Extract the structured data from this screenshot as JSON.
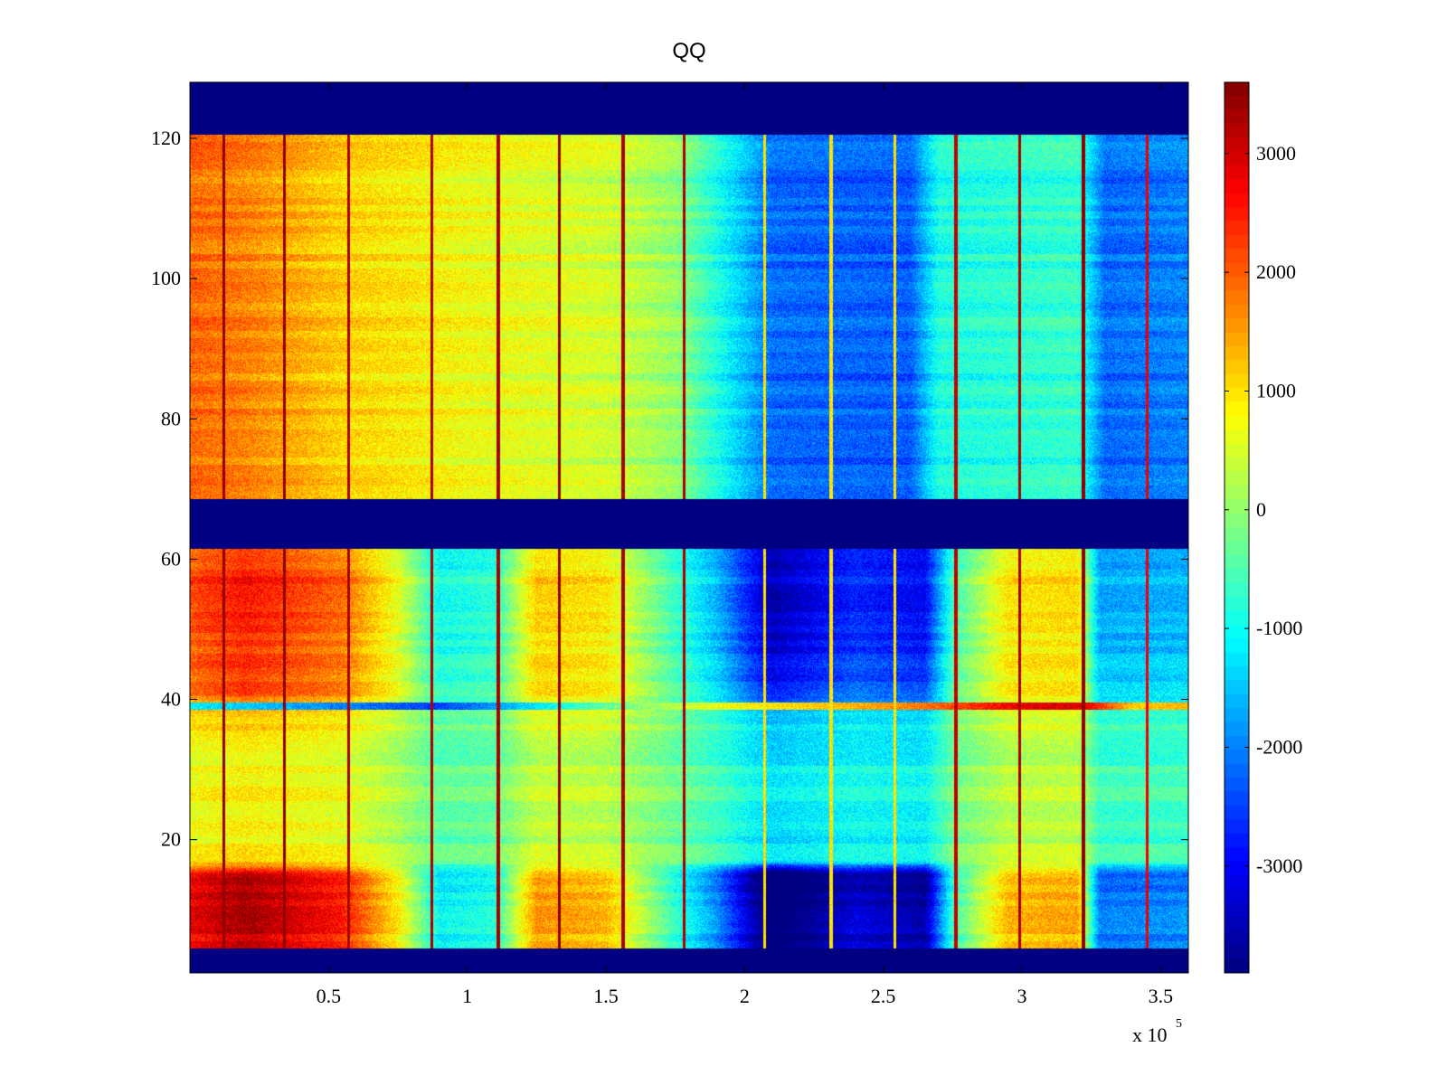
{
  "chart_data": {
    "type": "heatmap",
    "title": "QQ",
    "colormap": "jet",
    "xlabel": "",
    "ylabel": "",
    "x_multiplier_label": {
      "base": "x 10",
      "exponent": "5"
    },
    "xlim": [
      0,
      360000
    ],
    "ylim": [
      1,
      128
    ],
    "clim": [
      -3900,
      3600
    ],
    "x_ticks": [
      {
        "value": 50000,
        "label": "0.5"
      },
      {
        "value": 100000,
        "label": "1"
      },
      {
        "value": 150000,
        "label": "1.5"
      },
      {
        "value": 200000,
        "label": "2"
      },
      {
        "value": 250000,
        "label": "2.5"
      },
      {
        "value": 300000,
        "label": "3"
      },
      {
        "value": 350000,
        "label": "3.5"
      }
    ],
    "y_ticks": [
      {
        "value": 20,
        "label": "20"
      },
      {
        "value": 40,
        "label": "40"
      },
      {
        "value": 60,
        "label": "60"
      },
      {
        "value": 80,
        "label": "80"
      },
      {
        "value": 100,
        "label": "100"
      },
      {
        "value": 120,
        "label": "120"
      }
    ],
    "colorbar_ticks": [
      {
        "value": 3000,
        "label": "3000"
      },
      {
        "value": 2000,
        "label": "2000"
      },
      {
        "value": 1000,
        "label": "1000"
      },
      {
        "value": 0,
        "label": "0"
      },
      {
        "value": -1000,
        "label": "-1000"
      },
      {
        "value": -2000,
        "label": "-2000"
      },
      {
        "value": -3000,
        "label": "-3000"
      }
    ],
    "masked_row_ranges": [
      [
        1,
        4
      ],
      [
        62,
        68
      ],
      [
        121,
        128
      ]
    ],
    "upper_block_x_profile": [
      {
        "x": 0,
        "value": 1900
      },
      {
        "x": 20000,
        "value": 1700
      },
      {
        "x": 55000,
        "value": 1100
      },
      {
        "x": 100000,
        "value": 700
      },
      {
        "x": 150000,
        "value": 450
      },
      {
        "x": 175000,
        "value": 0
      },
      {
        "x": 190000,
        "value": -900
      },
      {
        "x": 210000,
        "value": -2200
      },
      {
        "x": 260000,
        "value": -2300
      },
      {
        "x": 270000,
        "value": -900
      },
      {
        "x": 320000,
        "value": -700
      },
      {
        "x": 330000,
        "value": -2200
      },
      {
        "x": 360000,
        "value": -2000
      }
    ],
    "lower_block_x_profile": [
      {
        "x": 0,
        "value": 2000
      },
      {
        "x": 20000,
        "value": 2400
      },
      {
        "x": 55000,
        "value": 1800
      },
      {
        "x": 75000,
        "value": 600
      },
      {
        "x": 90000,
        "value": -900
      },
      {
        "x": 110000,
        "value": -700
      },
      {
        "x": 125000,
        "value": 1100
      },
      {
        "x": 150000,
        "value": 900
      },
      {
        "x": 170000,
        "value": -300
      },
      {
        "x": 190000,
        "value": -1500
      },
      {
        "x": 210000,
        "value": -3300
      },
      {
        "x": 240000,
        "value": -2500
      },
      {
        "x": 265000,
        "value": -2800
      },
      {
        "x": 275000,
        "value": -600
      },
      {
        "x": 295000,
        "value": 900
      },
      {
        "x": 320000,
        "value": 1000
      },
      {
        "x": 328000,
        "value": -1600
      },
      {
        "x": 360000,
        "value": -1500
      }
    ],
    "lower_block_y_weights": [
      {
        "y": 5,
        "weight": 1.3
      },
      {
        "y": 15,
        "weight": 1.4
      },
      {
        "y": 17,
        "weight": 0.4
      },
      {
        "y": 30,
        "weight": 0.35
      },
      {
        "y": 38,
        "weight": 0.5
      },
      {
        "y": 41,
        "weight": 0.9
      },
      {
        "y": 55,
        "weight": 1.1
      },
      {
        "y": 61,
        "weight": 1.0
      }
    ],
    "row_39_x_profile": [
      {
        "x": 0,
        "value": -1000
      },
      {
        "x": 90000,
        "value": -2400
      },
      {
        "x": 150000,
        "value": -200
      },
      {
        "x": 190000,
        "value": 800
      },
      {
        "x": 260000,
        "value": 1800
      },
      {
        "x": 300000,
        "value": 3000
      },
      {
        "x": 322000,
        "value": 3100
      },
      {
        "x": 340000,
        "value": 1300
      },
      {
        "x": 360000,
        "value": 1500
      }
    ],
    "vertical_line_events": [
      {
        "x": 12000,
        "value": 3500
      },
      {
        "x": 34000,
        "value": 3500
      },
      {
        "x": 57000,
        "value": 3300
      },
      {
        "x": 87000,
        "value": 3300
      },
      {
        "x": 111000,
        "value": 3300
      },
      {
        "x": 133000,
        "value": 3500
      },
      {
        "x": 156000,
        "value": 3300
      },
      {
        "x": 178000,
        "value": 3300
      },
      {
        "x": 207000,
        "value": 1000
      },
      {
        "x": 231000,
        "value": 1000
      },
      {
        "x": 254000,
        "value": 1000
      },
      {
        "x": 276000,
        "value": 3100
      },
      {
        "x": 299000,
        "value": 3300
      },
      {
        "x": 322000,
        "value": 3500
      },
      {
        "x": 345000,
        "value": 2800
      }
    ]
  }
}
